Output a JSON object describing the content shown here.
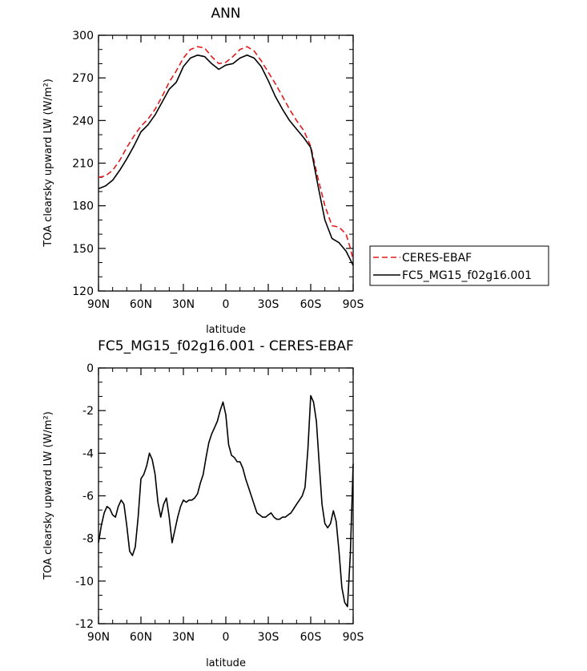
{
  "chart_data": [
    {
      "type": "line",
      "title": "ANN",
      "xlabel": "latitude",
      "ylabel": "TOA clearsky upward LW (W/m²)",
      "xlim": [
        90,
        -90
      ],
      "ylim": [
        120,
        300
      ],
      "x_ticks": [
        {
          "value": 90,
          "label": "90N"
        },
        {
          "value": 60,
          "label": "60N"
        },
        {
          "value": 30,
          "label": "30N"
        },
        {
          "value": 0,
          "label": "0"
        },
        {
          "value": -30,
          "label": "30S"
        },
        {
          "value": -60,
          "label": "60S"
        },
        {
          "value": -90,
          "label": "90S"
        }
      ],
      "y_ticks": [
        120,
        150,
        180,
        210,
        240,
        270,
        300
      ],
      "grid": false,
      "legend": {
        "placement": "outside-right",
        "entries": [
          "CERES-EBAF",
          "FC5_MG15_f02g16.001"
        ]
      },
      "series": [
        {
          "name": "CERES-EBAF",
          "color": "#e41a1c",
          "style": "dashed",
          "x": [
            90,
            85,
            80,
            75,
            70,
            65,
            60,
            55,
            50,
            45,
            40,
            35,
            30,
            25,
            20,
            15,
            10,
            5,
            0,
            -5,
            -10,
            -15,
            -20,
            -25,
            -30,
            -35,
            -40,
            -45,
            -50,
            -55,
            -60,
            -65,
            -70,
            -75,
            -80,
            -85,
            -88,
            -90
          ],
          "y": [
            200,
            201,
            205,
            212,
            221,
            229,
            236,
            241,
            248,
            257,
            267,
            275,
            284,
            290,
            292,
            291,
            285,
            280,
            281,
            285,
            290,
            292,
            289,
            282,
            274,
            266,
            257,
            248,
            240,
            233,
            222,
            200,
            180,
            166,
            165,
            160,
            150,
            142
          ]
        },
        {
          "name": "FC5_MG15_f02g16.001",
          "color": "#000000",
          "style": "solid",
          "x": [
            90,
            85,
            80,
            75,
            70,
            65,
            60,
            55,
            50,
            45,
            40,
            35,
            30,
            25,
            20,
            15,
            10,
            5,
            0,
            -5,
            -10,
            -15,
            -20,
            -25,
            -30,
            -35,
            -40,
            -45,
            -50,
            -55,
            -60,
            -65,
            -70,
            -75,
            -80,
            -85,
            -88,
            -90
          ],
          "y": [
            192,
            194,
            198,
            205,
            213,
            222,
            232,
            237,
            244,
            253,
            262,
            267,
            278,
            284,
            286,
            285,
            280,
            276,
            279,
            280,
            284,
            286,
            284,
            278,
            268,
            257,
            248,
            240,
            234,
            228,
            221,
            195,
            170,
            157,
            154,
            148,
            142,
            138
          ]
        }
      ]
    },
    {
      "type": "line",
      "title": "FC5_MG15_f02g16.001 - CERES-EBAF",
      "xlabel": "latitude",
      "ylabel": "TOA clearsky upward LW (W/m²)",
      "xlim": [
        90,
        -90
      ],
      "ylim": [
        -12,
        0
      ],
      "x_ticks": [
        {
          "value": 90,
          "label": "90N"
        },
        {
          "value": 60,
          "label": "60N"
        },
        {
          "value": 30,
          "label": "30N"
        },
        {
          "value": 0,
          "label": "0"
        },
        {
          "value": -30,
          "label": "30S"
        },
        {
          "value": -60,
          "label": "60S"
        },
        {
          "value": -90,
          "label": "90S"
        }
      ],
      "y_ticks": [
        0,
        -2,
        -4,
        -6,
        -8,
        -10,
        -12
      ],
      "grid": false,
      "series": [
        {
          "color": "#000000",
          "style": "solid",
          "x": [
            90,
            88,
            86,
            84,
            82,
            80,
            78,
            76,
            74,
            72,
            70,
            68,
            66,
            64,
            62,
            60,
            58,
            56,
            54,
            52,
            50,
            48,
            46,
            44,
            42,
            40,
            38,
            36,
            34,
            32,
            30,
            28,
            26,
            24,
            22,
            20,
            18,
            16,
            14,
            12,
            10,
            8,
            6,
            4,
            2,
            0,
            -2,
            -4,
            -6,
            -8,
            -10,
            -12,
            -14,
            -16,
            -18,
            -20,
            -22,
            -24,
            -26,
            -28,
            -30,
            -32,
            -34,
            -36,
            -38,
            -40,
            -42,
            -44,
            -46,
            -48,
            -50,
            -52,
            -54,
            -56,
            -58,
            -60,
            -62,
            -64,
            -66,
            -68,
            -70,
            -72,
            -74,
            -76,
            -78,
            -80,
            -82,
            -84,
            -86,
            -88,
            -90
          ],
          "y": [
            -8.2,
            -7.4,
            -6.8,
            -6.5,
            -6.6,
            -6.9,
            -7.0,
            -6.5,
            -6.2,
            -6.4,
            -7.4,
            -8.6,
            -8.8,
            -8.4,
            -7.0,
            -5.2,
            -5.0,
            -4.6,
            -4.0,
            -4.3,
            -5.0,
            -6.3,
            -7.0,
            -6.4,
            -6.1,
            -7.0,
            -8.2,
            -7.6,
            -7.0,
            -6.5,
            -6.2,
            -6.3,
            -6.2,
            -6.2,
            -6.1,
            -5.9,
            -5.4,
            -5.0,
            -4.2,
            -3.5,
            -3.1,
            -2.8,
            -2.5,
            -2.0,
            -1.6,
            -2.2,
            -3.6,
            -4.1,
            -4.2,
            -4.4,
            -4.4,
            -4.7,
            -5.2,
            -5.6,
            -6.0,
            -6.4,
            -6.8,
            -6.9,
            -7.0,
            -7.0,
            -6.9,
            -6.8,
            -7.0,
            -7.1,
            -7.1,
            -7.0,
            -7.0,
            -6.9,
            -6.8,
            -6.6,
            -6.4,
            -6.2,
            -6.0,
            -5.6,
            -3.8,
            -1.3,
            -1.6,
            -2.5,
            -4.5,
            -6.4,
            -7.3,
            -7.5,
            -7.3,
            -6.7,
            -7.2,
            -8.6,
            -10.3,
            -11.0,
            -11.2,
            -8.7,
            -4.5
          ]
        }
      ]
    }
  ]
}
